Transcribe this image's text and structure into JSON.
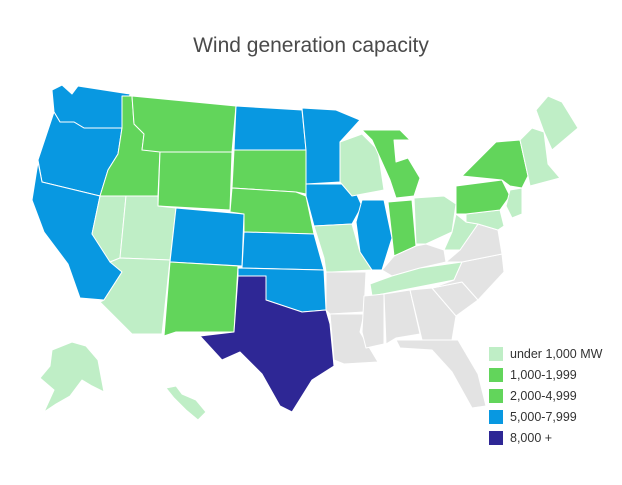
{
  "title": "Wind generation capacity",
  "colors": {
    "under_1000": "#bfeec6",
    "c1000": "#62d55b",
    "c2000": "#62d55b",
    "c5000": "#0898e1",
    "c8000": "#2e2795",
    "no_data": "#e3e3e3"
  },
  "legend": [
    {
      "label": "under 1,000 MW",
      "color": "#bfeec6"
    },
    {
      "label": "1,000-1,999",
      "color": "#62d55b"
    },
    {
      "label": "2,000-4,999",
      "color": "#62d55b"
    },
    {
      "label": "5,000-7,999",
      "color": "#0898e1"
    },
    {
      "label": "8,000 +",
      "color": "#2e2795"
    }
  ],
  "states": {
    "WA": "c5000",
    "OR": "c5000",
    "CA": "c5000",
    "ID": "c1000",
    "MT": "c1000",
    "WY": "c1000",
    "NV": "under_1000",
    "UT": "under_1000",
    "AZ": "under_1000",
    "CO": "c5000",
    "NM": "c1000",
    "ND": "c5000",
    "SD": "c1000",
    "NE": "c1000",
    "KS": "c5000",
    "OK": "c5000",
    "TX": "c8000",
    "MN": "c5000",
    "IA": "c5000",
    "MO": "under_1000",
    "AR": "no_data",
    "LA": "no_data",
    "WI": "under_1000",
    "IL": "c5000",
    "MI": "c1000",
    "IN": "c1000",
    "OH": "under_1000",
    "KY": "no_data",
    "TN": "under_1000",
    "MS": "no_data",
    "AL": "no_data",
    "GA": "no_data",
    "FL": "no_data",
    "SC": "no_data",
    "NC": "no_data",
    "VA": "no_data",
    "WV": "under_1000",
    "MD": "under_1000",
    "PA": "c1000",
    "NY": "c1000",
    "NJ": "under_1000",
    "NE_states": "under_1000",
    "ME": "under_1000",
    "AK": "under_1000",
    "HI": "under_1000"
  }
}
